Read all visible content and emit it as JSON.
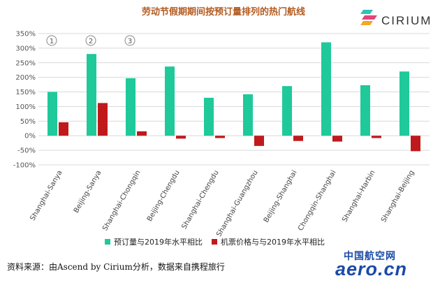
{
  "header": {
    "title": "劳动节假期期间按预订量排列的热门航线",
    "logo_text": "CIRIUM",
    "logo_icon": "cirium-logo-icon"
  },
  "footer": {
    "source": "资料来源：由Ascend by Cirium分析，数据来自携程旅行",
    "watermark_cn": "中国航空网",
    "watermark_en": "aero.cn"
  },
  "colors": {
    "bookings": "#1fc99a",
    "prices": "#c0191c",
    "title": "#b35a1f"
  },
  "chart_data": {
    "type": "bar",
    "title": "劳动节假期期间按预订量排列的热门航线",
    "categories": [
      "Shanghai-Sanya",
      "Beijing-Sanya",
      "Shanghai-Chongqin",
      "Beijing-Chengdu",
      "Shanghai-Chengdu",
      "Shanghai-Guangzhou",
      "Beijing-Shanghai",
      "Chongqin-Shanghai",
      "Shanghai-Harbin",
      "Shanghai-Beijing"
    ],
    "series": [
      {
        "name": "预订量与2019年水平相比",
        "color": "#1fc99a",
        "values": [
          150,
          280,
          197,
          237,
          130,
          142,
          170,
          320,
          173,
          220
        ]
      },
      {
        "name": "机票价格与与2019年水平相比",
        "color": "#c0191c",
        "values": [
          46,
          112,
          15,
          -10,
          -8,
          -35,
          -18,
          -20,
          -8,
          -53
        ]
      }
    ],
    "ylim": [
      -100,
      350
    ],
    "yticks": [
      -100,
      -50,
      0,
      50,
      100,
      150,
      200,
      250,
      300,
      350
    ],
    "ytick_format": "percent",
    "grid": true,
    "legend": "bottom",
    "annotations": [
      "1",
      "2",
      "3"
    ]
  }
}
